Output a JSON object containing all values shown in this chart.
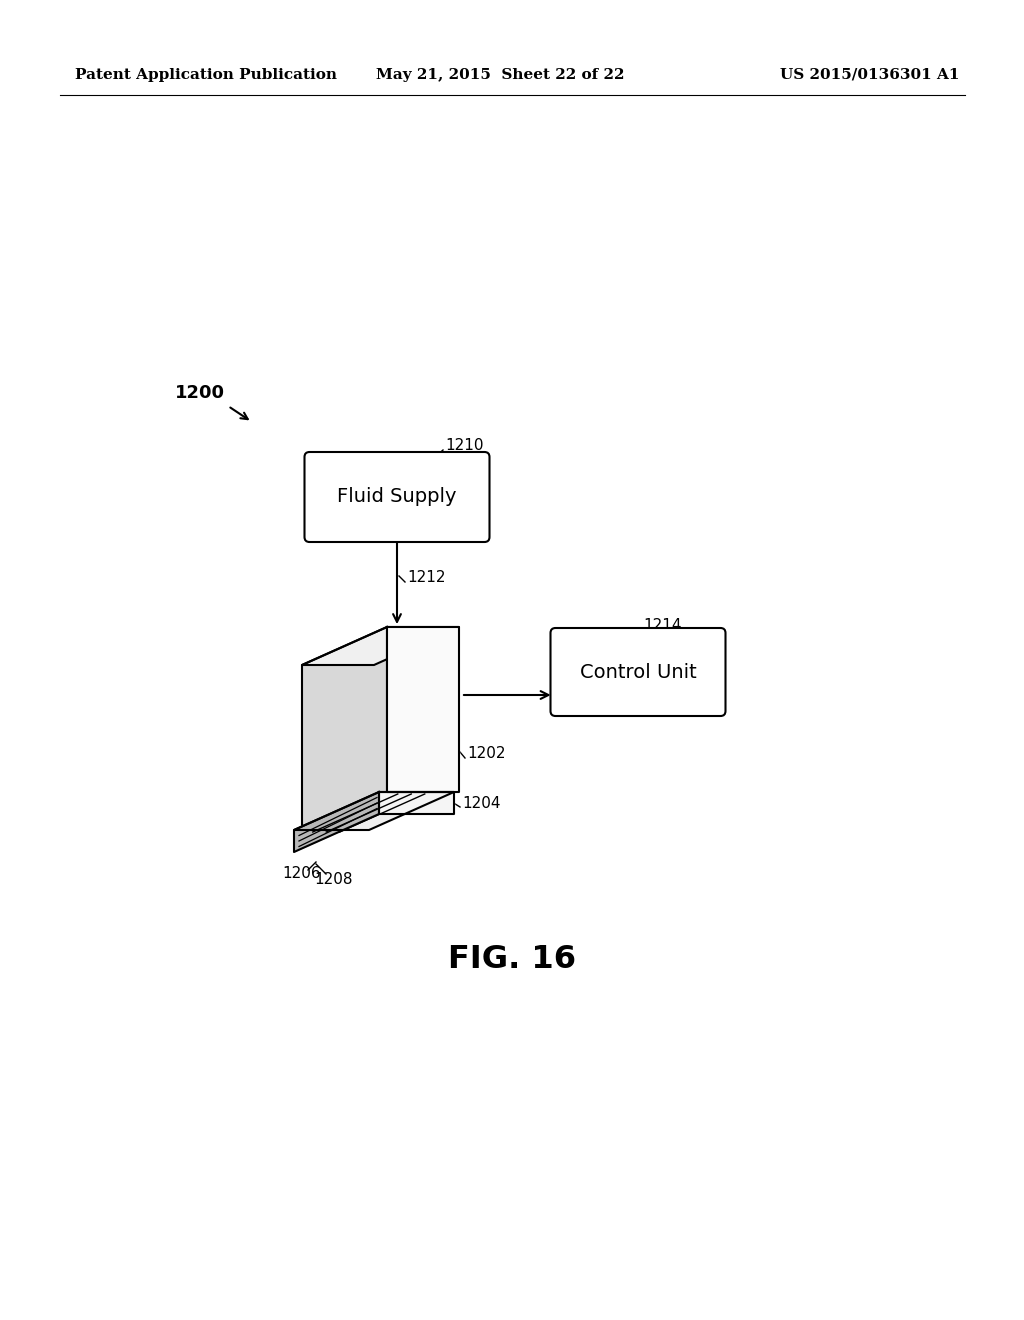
{
  "bg_color": "#ffffff",
  "header_left": "Patent Application Publication",
  "header_mid": "May 21, 2015  Sheet 22 of 22",
  "header_right": "US 2015/0136301 A1",
  "fig_label": "FIG. 16",
  "label_1200": "1200",
  "label_1210": "1210",
  "label_1212": "1212",
  "label_1202": "1202",
  "label_1204": "1204",
  "label_1206": "1206",
  "label_1208": "1208",
  "label_1214": "1214",
  "fluid_supply_text": "Fluid Supply",
  "control_unit_text": "Control Unit",
  "line_color": "#000000",
  "box_facecolor": "#ffffff",
  "box_edgecolor": "#000000",
  "gray_light": "#f0f0f0",
  "gray_mid": "#d8d8d8",
  "gray_dark": "#b8b8b8"
}
